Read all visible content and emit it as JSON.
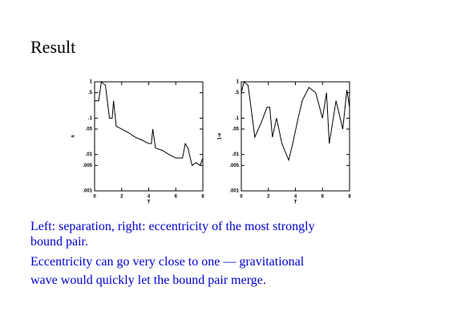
{
  "title": "Result",
  "chart_data": [
    {
      "type": "line",
      "xlabel": "T",
      "ylabel": "a",
      "log_y": true,
      "x": [
        0,
        0.3,
        0.5,
        0.8,
        1.1,
        1.3,
        1.4,
        1.6,
        2,
        2.5,
        3,
        3.5,
        4,
        4.2,
        4.3,
        4.5,
        5,
        5.5,
        6,
        6.5,
        6.7,
        6.9,
        7.2,
        7.5,
        7.8,
        8
      ],
      "series": [
        {
          "color": "#000000",
          "values": [
            0.3,
            0.3,
            1,
            0.8,
            0.1,
            0.1,
            0.3,
            0.06,
            0.05,
            0.04,
            0.03,
            0.025,
            0.02,
            0.02,
            0.05,
            0.015,
            0.013,
            0.01,
            0.008,
            0.008,
            0.02,
            0.015,
            0.005,
            0.006,
            0.005,
            0.008
          ]
        }
      ],
      "xlim": [
        0,
        8
      ],
      "xticks": [
        0,
        2,
        4,
        6,
        8
      ],
      "ylim": [
        0.001,
        1
      ],
      "yticks": [
        1,
        {
          "value": 0.5,
          "label": ".5"
        },
        {
          "value": 0.1,
          "label": ".1"
        },
        {
          "value": 0.05,
          "label": ".05"
        },
        {
          "value": 0.01,
          "label": ".01"
        },
        {
          "value": 0.005,
          "label": ".005"
        },
        {
          "value": 0.001,
          "label": ".001"
        }
      ]
    },
    {
      "type": "line",
      "xlabel": "T",
      "ylabel": "1-e",
      "log_y": true,
      "x": [
        0,
        0.2,
        0.5,
        1,
        1.5,
        1.9,
        2.1,
        2.3,
        2.6,
        3,
        3.5,
        3.8,
        4.2,
        4.5,
        5,
        5.5,
        6,
        6.3,
        6.5,
        7,
        7.5,
        7.8,
        8
      ],
      "series": [
        {
          "color": "#000000",
          "values": [
            0.5,
            1,
            0.8,
            0.03,
            0.08,
            0.2,
            0.2,
            0.03,
            0.1,
            0.02,
            0.007,
            0.02,
            0.1,
            0.3,
            0.7,
            0.5,
            0.1,
            0.5,
            0.02,
            0.3,
            0.05,
            0.6,
            0.2
          ]
        }
      ],
      "xlim": [
        0,
        8
      ],
      "xticks": [
        0,
        2,
        4,
        6,
        8
      ],
      "ylim": [
        0.001,
        1
      ],
      "yticks": [
        1,
        {
          "value": 0.5,
          "label": ".5"
        },
        {
          "value": 0.1,
          "label": ".1"
        },
        {
          "value": 0.05,
          "label": ".05"
        },
        {
          "value": 0.01,
          "label": ".01"
        },
        {
          "value": 0.005,
          "label": ".005"
        },
        {
          "value": 0.001,
          "label": ".001"
        }
      ]
    }
  ],
  "text": [
    "Left: separation, right: eccentricity of the most strongly",
    "bound pair.",
    "Eccentricity can go very close to one — gravitational",
    "wave would quickly let the bound pair merge."
  ]
}
